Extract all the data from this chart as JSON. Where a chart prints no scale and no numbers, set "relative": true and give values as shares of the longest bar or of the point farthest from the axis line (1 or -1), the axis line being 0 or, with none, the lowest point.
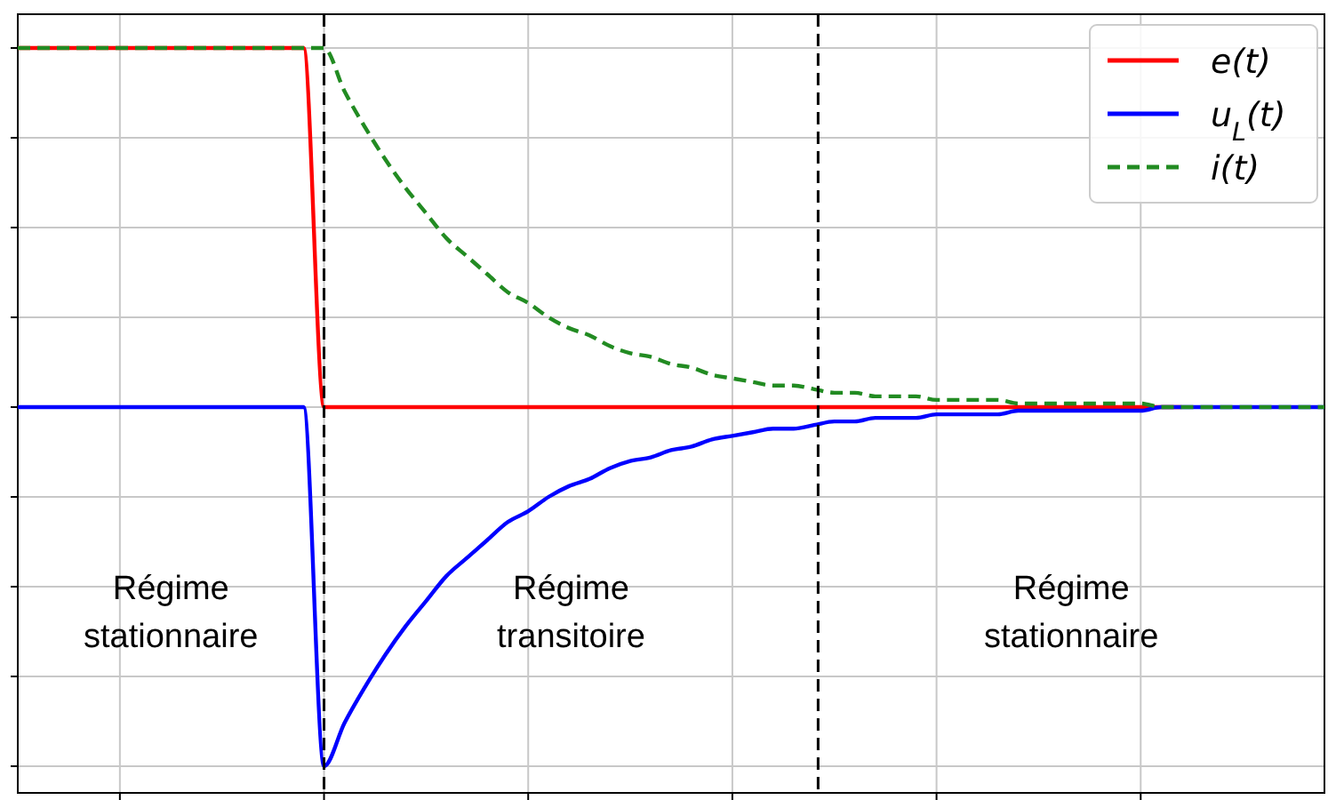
{
  "chart_data": {
    "type": "line",
    "relative": true,
    "categories": [
      null,
      null,
      null,
      null,
      null,
      null,
      null,
      null,
      null,
      null,
      null,
      null,
      null,
      null,
      null,
      null,
      null,
      null,
      null,
      null,
      null,
      null,
      null,
      null,
      null,
      null,
      null,
      null,
      null,
      null,
      null,
      null,
      null,
      null,
      null,
      null,
      null,
      null,
      null,
      null,
      null,
      null,
      null,
      null,
      null,
      null,
      null,
      null,
      null,
      null,
      null,
      null,
      null,
      null,
      null,
      null,
      null,
      null,
      null,
      null,
      null,
      null,
      null,
      null,
      null
    ],
    "grid": true,
    "legend": "top right",
    "marker": "none",
    "series": [
      {
        "name": "e(t)",
        "color": "#ff0000",
        "values": [
          1,
          1,
          1,
          1,
          1,
          1,
          1,
          1,
          1,
          1,
          1,
          1,
          1,
          1,
          1,
          0,
          0,
          0,
          0,
          0,
          0,
          0,
          0,
          0,
          0,
          0,
          0,
          0,
          0,
          0,
          0,
          0,
          0,
          0,
          0,
          0,
          0,
          0,
          0,
          0,
          0,
          0,
          0,
          0,
          0,
          0,
          0,
          0,
          0,
          0,
          0,
          0,
          0,
          0,
          0,
          0,
          0,
          0,
          null,
          null,
          null,
          null,
          null,
          null,
          null
        ]
      },
      {
        "name": "u$_{L}$(t)",
        "color": "#0000ff",
        "values": [
          0,
          0,
          0,
          0,
          0,
          0,
          0,
          0,
          0,
          0,
          0,
          0,
          0,
          0,
          0,
          -1,
          -0.88,
          -0.78,
          -0.69,
          -0.61,
          -0.54,
          -0.47,
          -0.42,
          -0.37,
          -0.32,
          -0.29,
          -0.25,
          -0.22,
          -0.2,
          -0.17,
          -0.15,
          -0.14,
          -0.12,
          -0.11,
          -0.09,
          -0.08,
          -0.07,
          -0.06,
          -0.06,
          -0.05,
          -0.04,
          -0.04,
          -0.03,
          -0.03,
          -0.03,
          -0.02,
          -0.02,
          -0.02,
          -0.02,
          -0.01,
          -0.01,
          -0.01,
          -0.01,
          -0.01,
          -0.01,
          -0.01,
          0,
          0,
          0,
          0,
          0,
          0,
          0,
          0,
          0
        ]
      },
      {
        "name": "i(t)",
        "color": "#228b22",
        "line_style": "dashed",
        "values": [
          1,
          1,
          1,
          1,
          1,
          1,
          1,
          1,
          1,
          1,
          1,
          1,
          1,
          1,
          1,
          1,
          0.88,
          0.78,
          0.69,
          0.61,
          0.54,
          0.47,
          0.42,
          0.37,
          0.32,
          0.29,
          0.25,
          0.22,
          0.2,
          0.17,
          0.15,
          0.14,
          0.12,
          0.11,
          0.09,
          0.08,
          0.07,
          0.06,
          0.06,
          0.05,
          0.04,
          0.04,
          0.03,
          0.03,
          0.03,
          0.02,
          0.02,
          0.02,
          0.02,
          0.01,
          0.01,
          0.01,
          0.01,
          0.01,
          0.01,
          0.01,
          0,
          0,
          0,
          0,
          0,
          0,
          0,
          0,
          0
        ]
      }
    ],
    "annotations": [
      "Régime\nstationnaire",
      "Régime\ntransitoire",
      "Régime\nstationnaire"
    ]
  }
}
